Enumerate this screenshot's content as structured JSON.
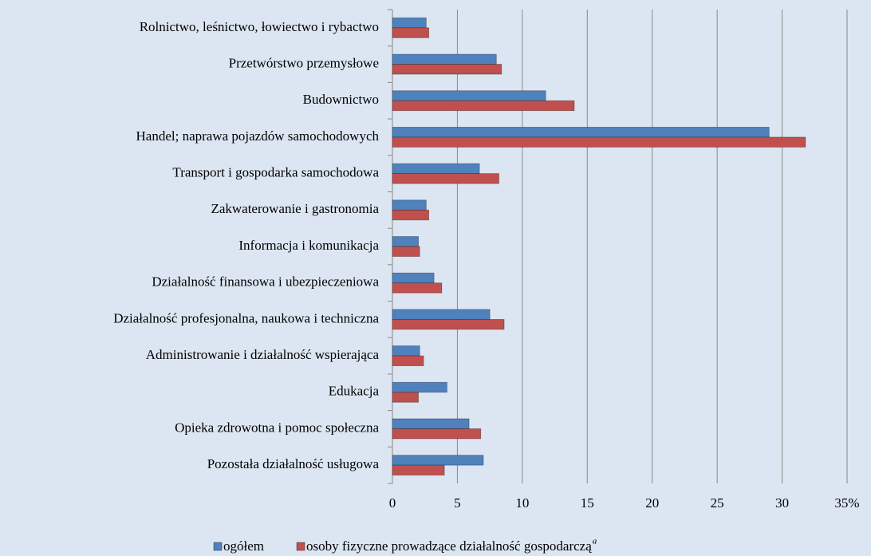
{
  "chart_data": {
    "type": "hbar",
    "categories": [
      "Rolnictwo, leśnictwo, łowiectwo i rybactwo",
      "Przetwórstwo przemysłowe",
      "Budownictwo",
      "Handel; naprawa pojazdów samochodowych",
      "Transport i gospodarka samochodowa",
      "Zakwaterowanie i gastronomia",
      "Informacja i komunikacja",
      "Działalność finansowa i ubezpieczeniowa",
      "Działalność profesjonalna, naukowa i techniczna",
      "Administrowanie i działalność wspierająca",
      "Edukacja",
      "Opieka zdrowotna i pomoc społeczna",
      "Pozostała działalność usługowa"
    ],
    "series": [
      {
        "name": "ogółem",
        "color": "#4f81bd",
        "values": [
          2.6,
          8.0,
          11.8,
          29.0,
          6.7,
          2.6,
          2.0,
          3.2,
          7.5,
          2.1,
          4.2,
          5.9,
          7.0
        ]
      },
      {
        "name": "osoby fizyczne prowadzące działalność gospodarczą",
        "color": "#c0504d",
        "values": [
          2.8,
          8.4,
          14.0,
          31.8,
          8.2,
          2.8,
          2.1,
          3.8,
          8.6,
          2.4,
          2.0,
          6.8,
          4.0
        ]
      }
    ],
    "footnote_marker": "a",
    "xlim": [
      0,
      35
    ],
    "xticks": [
      0,
      5,
      10,
      15,
      20,
      25,
      30,
      {
        "value": 35,
        "label": "35%"
      }
    ],
    "grid": true,
    "legend": "bottom"
  }
}
